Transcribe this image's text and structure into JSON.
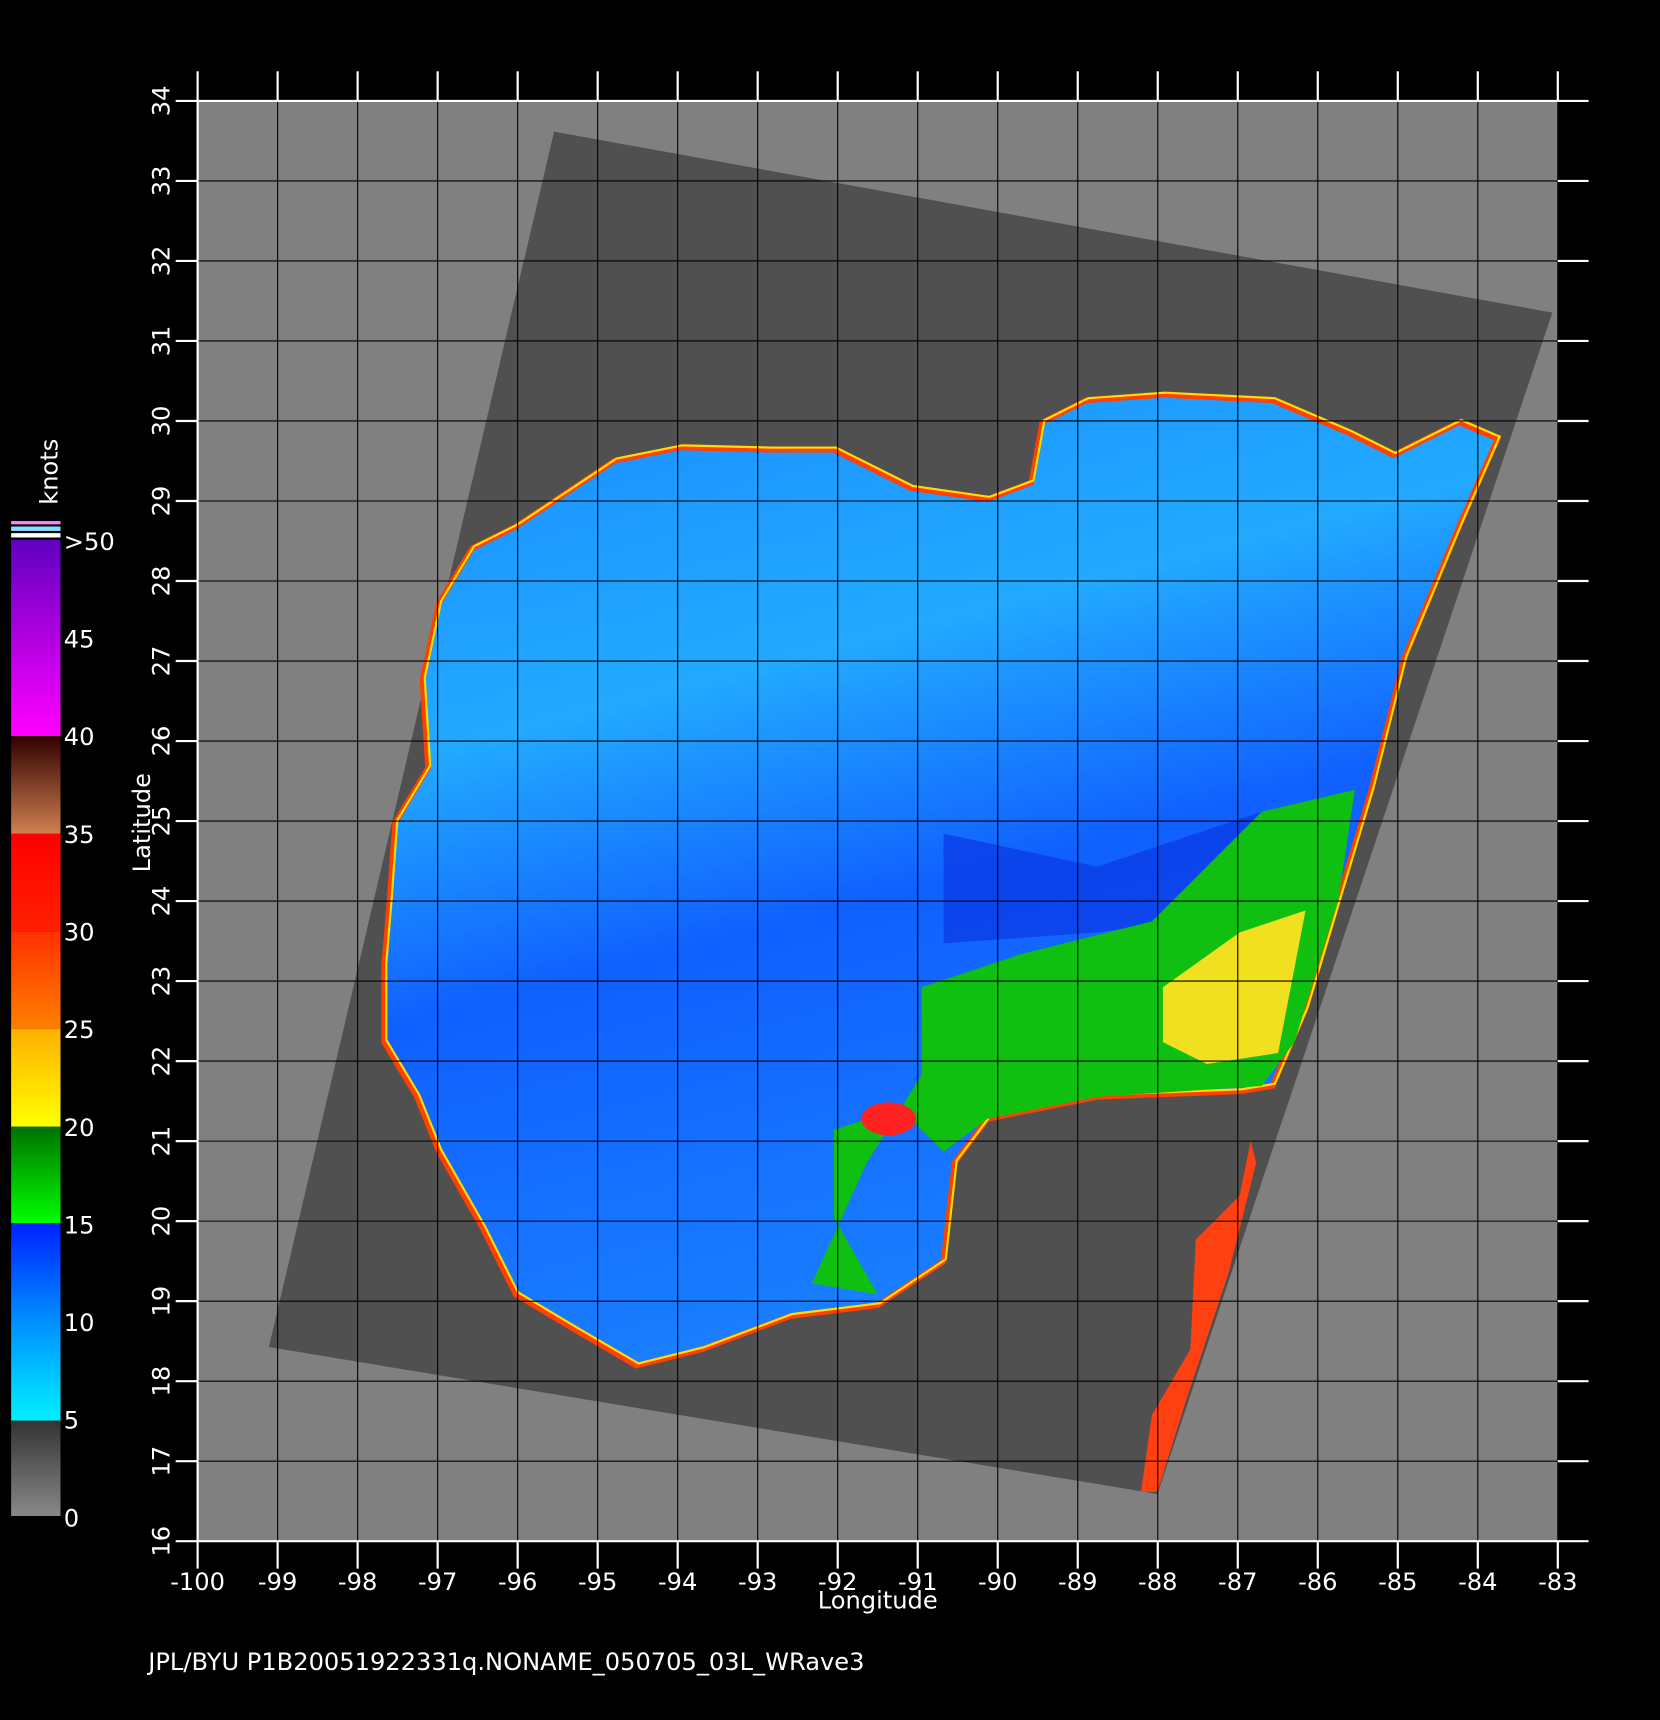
{
  "map": {
    "xlabel": "Longitude",
    "ylabel": "Latitude",
    "xlim": [
      -100,
      -83
    ],
    "ylim": [
      16,
      34
    ],
    "xticks": [
      -100,
      -99,
      -98,
      -97,
      -96,
      -95,
      -94,
      -93,
      -92,
      -91,
      -90,
      -89,
      -88,
      -87,
      -86,
      -85,
      -84,
      -83
    ],
    "yticks": [
      16,
      17,
      18,
      19,
      20,
      21,
      22,
      23,
      24,
      25,
      26,
      27,
      28,
      29,
      30,
      31,
      32,
      33,
      34
    ],
    "grid": true,
    "colorbar": {
      "title": "knots",
      "lim": [
        0,
        50
      ],
      "ticks": [
        0,
        5,
        10,
        15,
        20,
        25,
        30,
        35,
        40,
        45,
        {
          "value": 50,
          "label": ">50"
        }
      ]
    },
    "footer": "JPL/BYU  P1B20051922331q.NONAME_050705_03L_WRave3"
  }
}
